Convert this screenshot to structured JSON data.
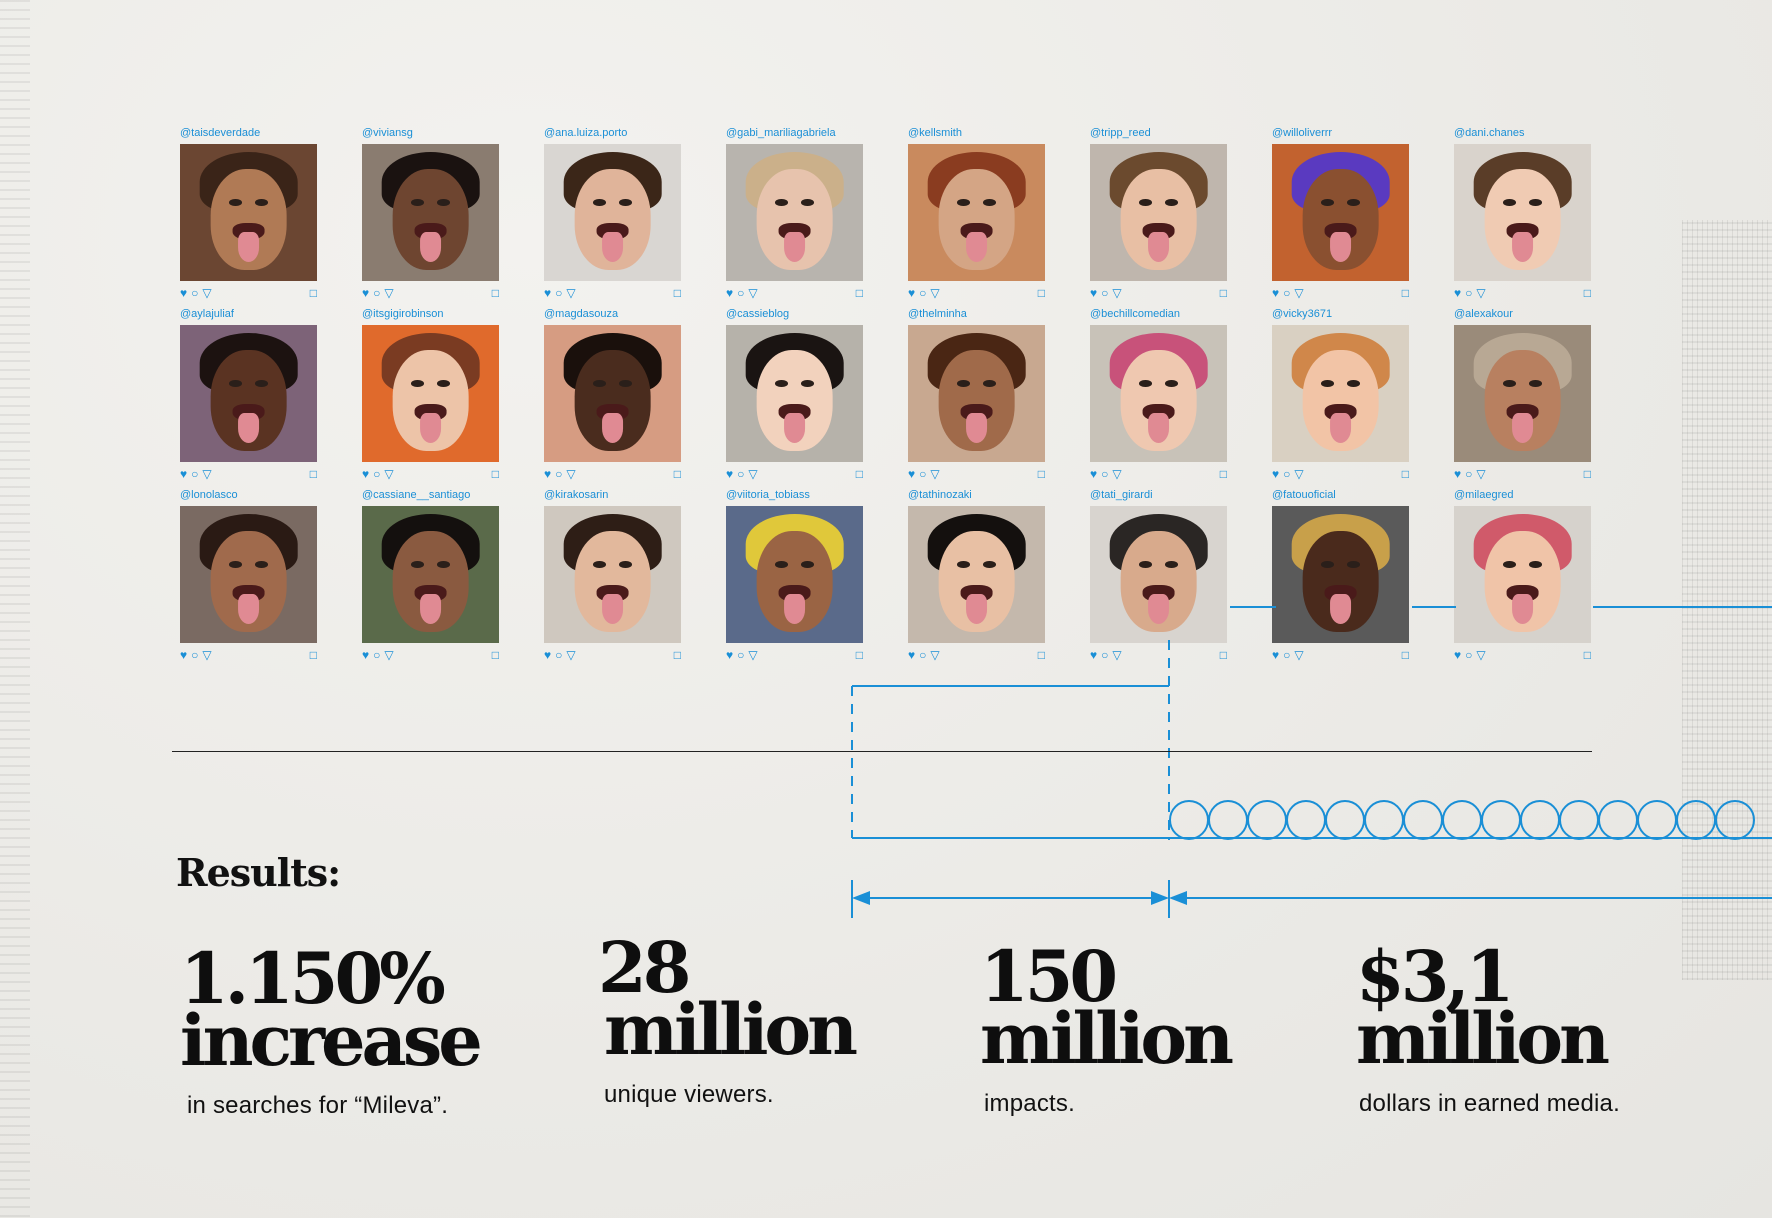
{
  "posts": [
    {
      "handle": "@taisdeverdade",
      "skin": "#b07a55",
      "hair": "#3a2418",
      "bg": "#6b4632"
    },
    {
      "handle": "@viviansg",
      "skin": "#6e4530",
      "hair": "#1a1210",
      "bg": "#8a7c70"
    },
    {
      "handle": "@ana.luiza.porto",
      "skin": "#e0b49a",
      "hair": "#3b2618",
      "bg": "#d9d6d2"
    },
    {
      "handle": "@gabi_mariliagabriela",
      "skin": "#e7c3ad",
      "hair": "#cbb08a",
      "bg": "#b8b4ae"
    },
    {
      "handle": "@kellsmith",
      "skin": "#d4a585",
      "hair": "#8a3c20",
      "bg": "#c98a5e"
    },
    {
      "handle": "@tripp_reed",
      "skin": "#e8bfa4",
      "hair": "#6b4a2e",
      "bg": "#bfb6ad"
    },
    {
      "handle": "@willoliverrr",
      "skin": "#8a5030",
      "hair": "#5a3ac0",
      "bg": "#c2622f"
    },
    {
      "handle": "@dani.chanes",
      "skin": "#f0cbb3",
      "hair": "#5a3d28",
      "bg": "#d9d3cc"
    },
    {
      "handle": "@aylajuliaf",
      "skin": "#5a3322",
      "hair": "#1c1210",
      "bg": "#7d6378"
    },
    {
      "handle": "@itsgigirobinson",
      "skin": "#edc4a8",
      "hair": "#7a3b22",
      "bg": "#e06a2c"
    },
    {
      "handle": "@magdasouza",
      "skin": "#4a2c1e",
      "hair": "#1a100c",
      "bg": "#d69c82"
    },
    {
      "handle": "@cassieblog",
      "skin": "#f2d2bd",
      "hair": "#1a1412",
      "bg": "#b6b2aa"
    },
    {
      "handle": "@thelminha",
      "skin": "#a06a4a",
      "hair": "#4a2614",
      "bg": "#c8a890"
    },
    {
      "handle": "@bechillcomedian",
      "skin": "#efc8b0",
      "hair": "#c8527a",
      "bg": "#c8c2b8"
    },
    {
      "handle": "@vicky3671",
      "skin": "#f2c4a6",
      "hair": "#d0874a",
      "bg": "#d9d0c2"
    },
    {
      "handle": "@alexakour",
      "skin": "#b88060",
      "hair": "#b8a894",
      "bg": "#9a8b7a"
    },
    {
      "handle": "@lonolasco",
      "skin": "#a06a4c",
      "hair": "#2a1a14",
      "bg": "#7a6a62"
    },
    {
      "handle": "@cassiane__santiago",
      "skin": "#8a5a40",
      "hair": "#14100e",
      "bg": "#5a6a4a"
    },
    {
      "handle": "@kirakosarin",
      "skin": "#e2b89c",
      "hair": "#2e1e16",
      "bg": "#cfc8bf"
    },
    {
      "handle": "@viitoria_tobiass",
      "skin": "#9a6444",
      "hair": "#e0c83a",
      "bg": "#5a6a8a"
    },
    {
      "handle": "@tathinozaki",
      "skin": "#e8c0a4",
      "hair": "#14100e",
      "bg": "#c4b8ac"
    },
    {
      "handle": "@tati_girardi",
      "skin": "#d8aa8c",
      "hair": "#2a2624",
      "bg": "#d8d4cf"
    },
    {
      "handle": "@fatouoficial",
      "skin": "#4a2a1c",
      "hair": "#c8a04a",
      "bg": "#5a5a5a"
    },
    {
      "handle": "@milaegred",
      "skin": "#f0c4a8",
      "hair": "#d05a6a",
      "bg": "#d6d2cc"
    }
  ],
  "icons": {
    "like": "heart-icon",
    "comment": "comment-icon",
    "share": "share-icon",
    "save": "bookmark-icon"
  },
  "accent_color": "#1a8fd6",
  "results": {
    "title": "Results:",
    "stats": [
      {
        "big1": "1.150%",
        "big2": "increase",
        "desc": "in searches for “Mileva”."
      },
      {
        "big1": "28",
        "big2": "million",
        "desc": "unique viewers."
      },
      {
        "big1": "150",
        "big2": "million",
        "desc": "impacts."
      },
      {
        "big1": "$3,1",
        "big2": "million",
        "desc": "dollars in earned media."
      }
    ]
  }
}
